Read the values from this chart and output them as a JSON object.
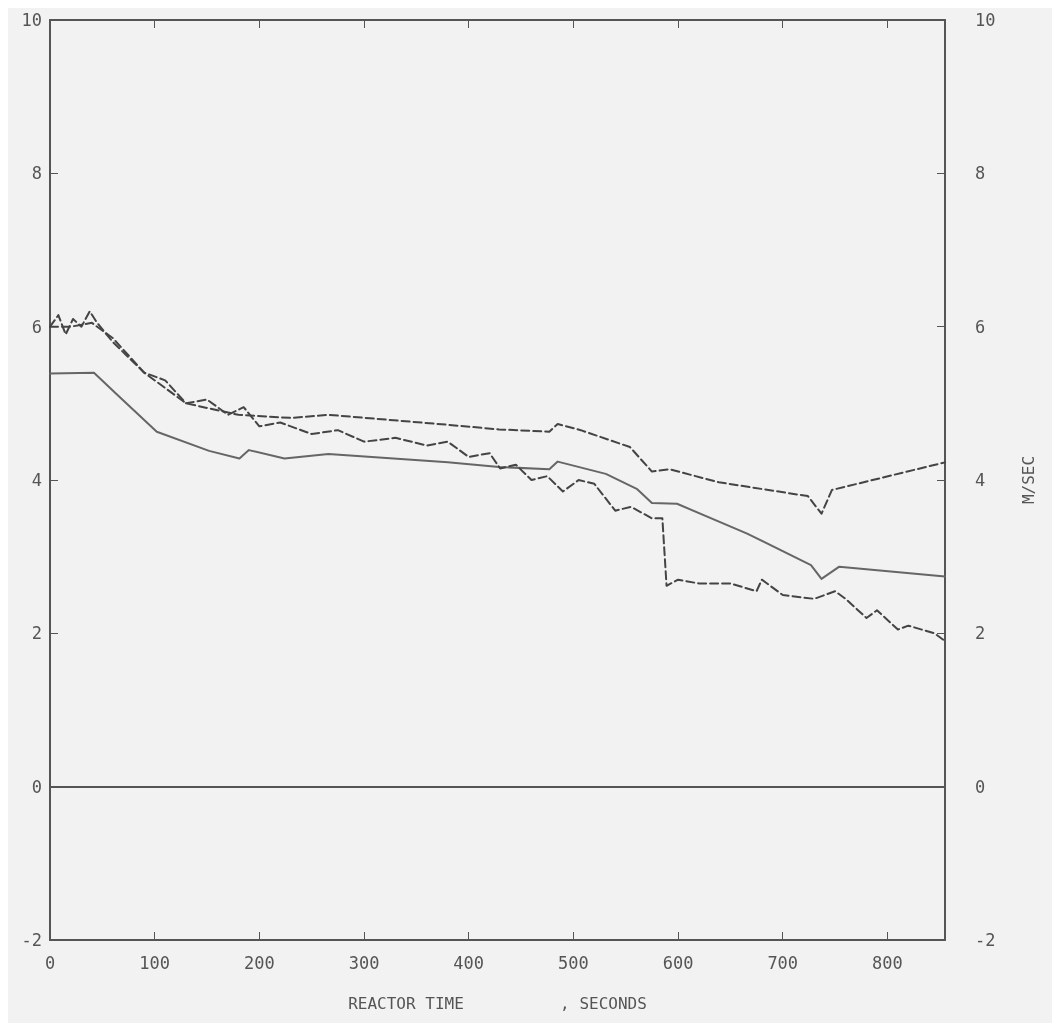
{
  "chart_data": {
    "type": "line",
    "xlabel": "REACTOR TIME          , SECONDS",
    "y2label": "M/SEC",
    "xlim": [
      0,
      855
    ],
    "xticks": [
      0,
      100,
      200,
      300,
      400,
      500,
      600,
      700,
      800
    ],
    "ylim": [
      -2,
      10
    ],
    "yticks": [
      -2,
      0,
      2,
      4,
      6,
      8,
      10
    ],
    "y2lim": [
      -2,
      10
    ],
    "y2ticks": [
      -2,
      0,
      2,
      4,
      6,
      8,
      10
    ],
    "grid": false,
    "marker": "none",
    "ref_lines": [
      {
        "axis": "y",
        "value": 0,
        "color": "#555555",
        "line_style": "solid"
      }
    ],
    "series": [
      {
        "color": "#666666",
        "line_style": "solid",
        "x": [
          0,
          42,
          66,
          102,
          152,
          181,
          190,
          224,
          266,
          380,
          429,
          477,
          485,
          531,
          561,
          575,
          599,
          666,
          727,
          737,
          754,
          855
        ],
        "values": [
          5.39,
          5.4,
          5.09,
          4.63,
          4.38,
          4.28,
          4.39,
          4.28,
          4.34,
          4.23,
          4.17,
          4.14,
          4.24,
          4.08,
          3.88,
          3.7,
          3.69,
          3.3,
          2.89,
          2.71,
          2.87,
          2.74
        ]
      },
      {
        "color": "#444444",
        "line_style": "dashed",
        "x": [
          0,
          20,
          40,
          60,
          90,
          130,
          180,
          230,
          266,
          380,
          429,
          477,
          485,
          507,
          554,
          575,
          592,
          639,
          724,
          737,
          747,
          855
        ],
        "values": [
          6.0,
          6.0,
          6.05,
          5.85,
          5.4,
          5.0,
          4.85,
          4.81,
          4.85,
          4.72,
          4.66,
          4.63,
          4.73,
          4.65,
          4.43,
          4.11,
          4.14,
          3.97,
          3.79,
          3.56,
          3.87,
          4.23
        ]
      },
      {
        "color": "#444444",
        "line_style": "dashed",
        "x": [
          0,
          8,
          15,
          22,
          30,
          38,
          45,
          60,
          75,
          90,
          110,
          130,
          150,
          170,
          185,
          200,
          220,
          250,
          275,
          300,
          330,
          360,
          380,
          400,
          420,
          430,
          445,
          460,
          475,
          490,
          505,
          520,
          540,
          555,
          575,
          585,
          589,
          600,
          620,
          650,
          675,
          680,
          700,
          730,
          750,
          760,
          780,
          790,
          810,
          820,
          845,
          855
        ],
        "values": [
          6.0,
          6.15,
          5.9,
          6.1,
          6.0,
          6.2,
          6.05,
          5.8,
          5.6,
          5.4,
          5.3,
          5.0,
          5.05,
          4.85,
          4.95,
          4.7,
          4.75,
          4.6,
          4.65,
          4.5,
          4.55,
          4.45,
          4.5,
          4.3,
          4.35,
          4.15,
          4.2,
          4.0,
          4.05,
          3.85,
          4.0,
          3.95,
          3.6,
          3.65,
          3.5,
          3.5,
          2.62,
          2.7,
          2.65,
          2.65,
          2.55,
          2.7,
          2.5,
          2.45,
          2.55,
          2.45,
          2.2,
          2.3,
          2.05,
          2.1,
          2.0,
          1.9
        ]
      }
    ]
  }
}
